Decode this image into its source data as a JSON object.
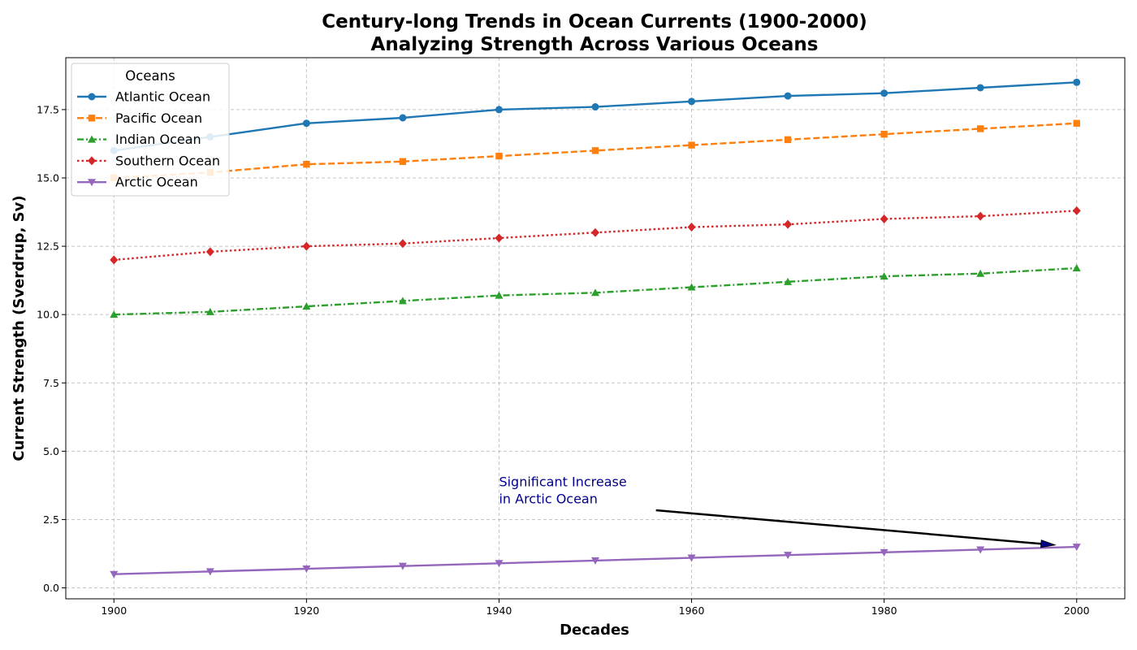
{
  "chart_data": {
    "type": "line",
    "title_line1": "Century-long Trends in Ocean Currents (1900-2000)",
    "title_line2": "Analyzing Strength Across Various Oceans",
    "xlabel": "Decades",
    "ylabel": "Current Strength (Sverdrup, Sv)",
    "x": [
      1900,
      1910,
      1920,
      1930,
      1940,
      1950,
      1960,
      1970,
      1980,
      1990,
      2000
    ],
    "xlim": [
      1895,
      2005
    ],
    "ylim": [
      -0.4,
      19.4
    ],
    "xticks": [
      1900,
      1920,
      1940,
      1960,
      1980,
      2000
    ],
    "yticks": [
      0.0,
      2.5,
      5.0,
      7.5,
      10.0,
      12.5,
      15.0,
      17.5
    ],
    "ytick_labels": [
      "0.0",
      "2.5",
      "5.0",
      "7.5",
      "10.0",
      "12.5",
      "15.0",
      "17.5"
    ],
    "grid": true,
    "legend": {
      "title": "Oceans",
      "placement": "top-left"
    },
    "series": [
      {
        "name": "Atlantic Ocean",
        "color": "#1f77b4",
        "linestyle": "solid",
        "marker": "circle",
        "values": [
          16.0,
          16.5,
          17.0,
          17.2,
          17.5,
          17.6,
          17.8,
          18.0,
          18.1,
          18.3,
          18.5
        ]
      },
      {
        "name": "Pacific Ocean",
        "color": "#ff7f0e",
        "linestyle": "dashed",
        "marker": "square",
        "values": [
          15.0,
          15.2,
          15.5,
          15.6,
          15.8,
          16.0,
          16.2,
          16.4,
          16.6,
          16.8,
          17.0
        ]
      },
      {
        "name": "Indian Ocean",
        "color": "#2ca02c",
        "linestyle": "dashdot",
        "marker": "triangle-up",
        "values": [
          10.0,
          10.1,
          10.3,
          10.5,
          10.7,
          10.8,
          11.0,
          11.2,
          11.4,
          11.5,
          11.7
        ]
      },
      {
        "name": "Southern Ocean",
        "color": "#d62728",
        "linestyle": "dotted",
        "marker": "diamond",
        "values": [
          12.0,
          12.3,
          12.5,
          12.6,
          12.8,
          13.0,
          13.2,
          13.3,
          13.5,
          13.6,
          13.8
        ]
      },
      {
        "name": "Arctic Ocean",
        "color": "#9467bd",
        "linestyle": "solid",
        "marker": "triangle-down",
        "values": [
          0.5,
          0.6,
          0.7,
          0.8,
          0.9,
          1.0,
          1.1,
          1.2,
          1.3,
          1.4,
          1.5
        ]
      }
    ],
    "annotation": {
      "line1": "Significant Increase",
      "line2": "in Arctic Ocean",
      "text_xy": [
        1940,
        3.0
      ],
      "arrow_tail": [
        1956.3,
        2.84
      ],
      "arrow_target": [
        2000,
        1.5
      ],
      "color": "#00008B"
    }
  }
}
